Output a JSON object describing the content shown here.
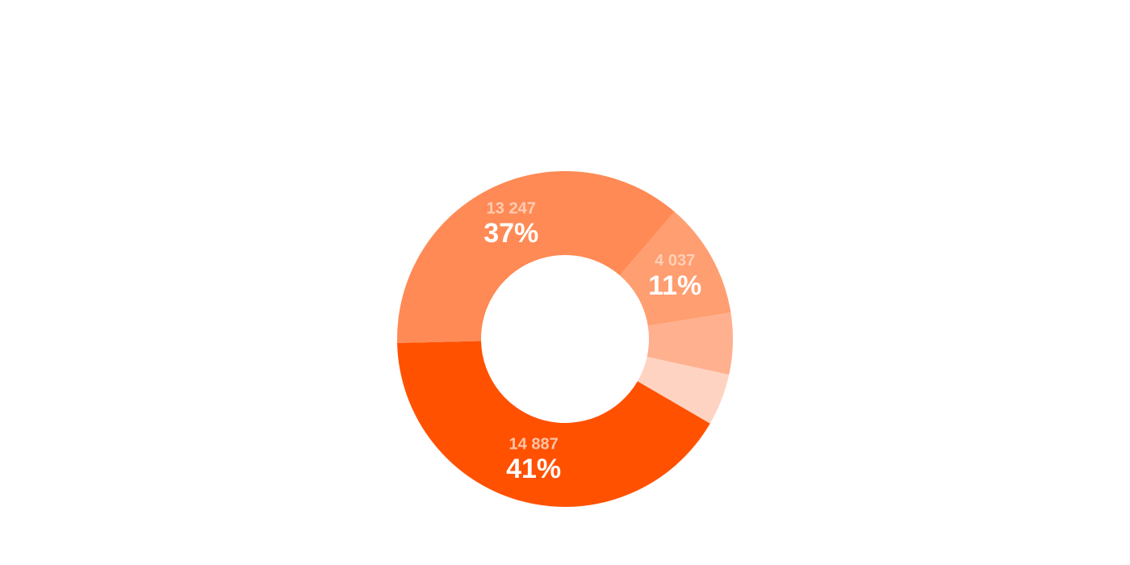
{
  "chart_data": {
    "type": "donut",
    "values": [
      4037,
      2140,
      1800,
      14887,
      13247
    ],
    "value_labels": [
      "4 037",
      null,
      null,
      "14 887",
      "13 247"
    ],
    "percent_labels": [
      "11%",
      null,
      null,
      "41%",
      "37%"
    ],
    "colors": [
      "#ff9e70",
      "#ffb08f",
      "#ffd3c2",
      "#ff5100",
      "#ff8a55"
    ]
  }
}
